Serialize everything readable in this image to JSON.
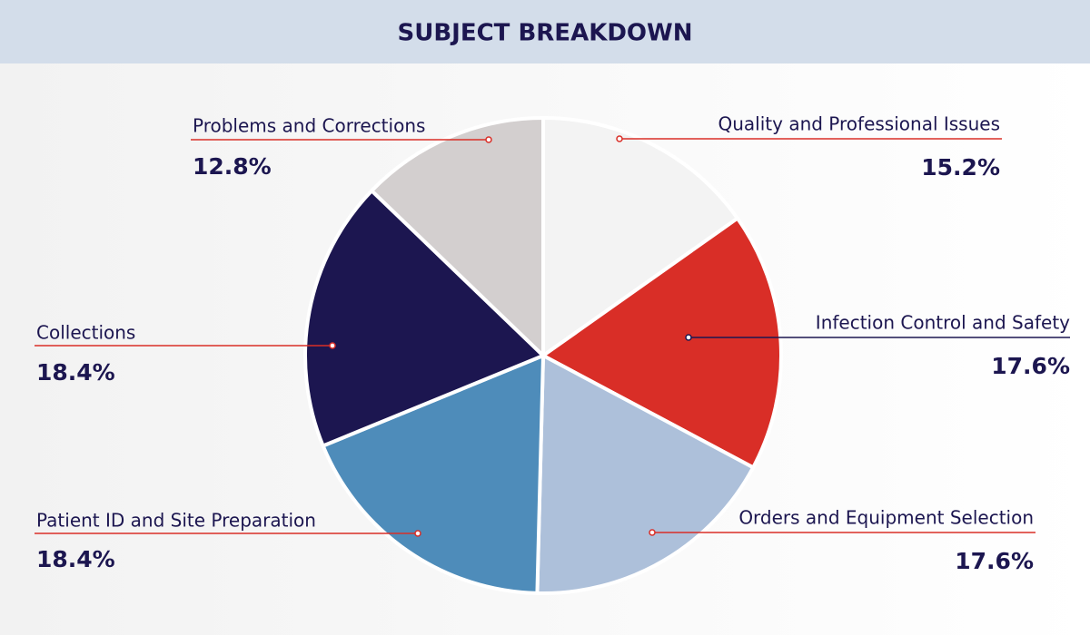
{
  "chart_data": {
    "type": "pie",
    "title": "SUBJECT BREAKDOWN",
    "categories": [
      "Quality and Professional Issues",
      "Infection Control and Safety",
      "Orders and Equipment Selection",
      "Patient ID and Site Preparation",
      "Collections",
      "Problems and Corrections"
    ],
    "values": [
      15.2,
      17.6,
      17.6,
      18.4,
      18.4,
      12.8
    ],
    "value_labels": [
      "15.2%",
      "17.6%",
      "17.6%",
      "18.4%",
      "18.4%",
      "12.8%"
    ],
    "colors": [
      "#f3f3f3",
      "#d92e27",
      "#adc0da",
      "#4e8cba",
      "#1c1650",
      "#d3cfcf"
    ]
  }
}
